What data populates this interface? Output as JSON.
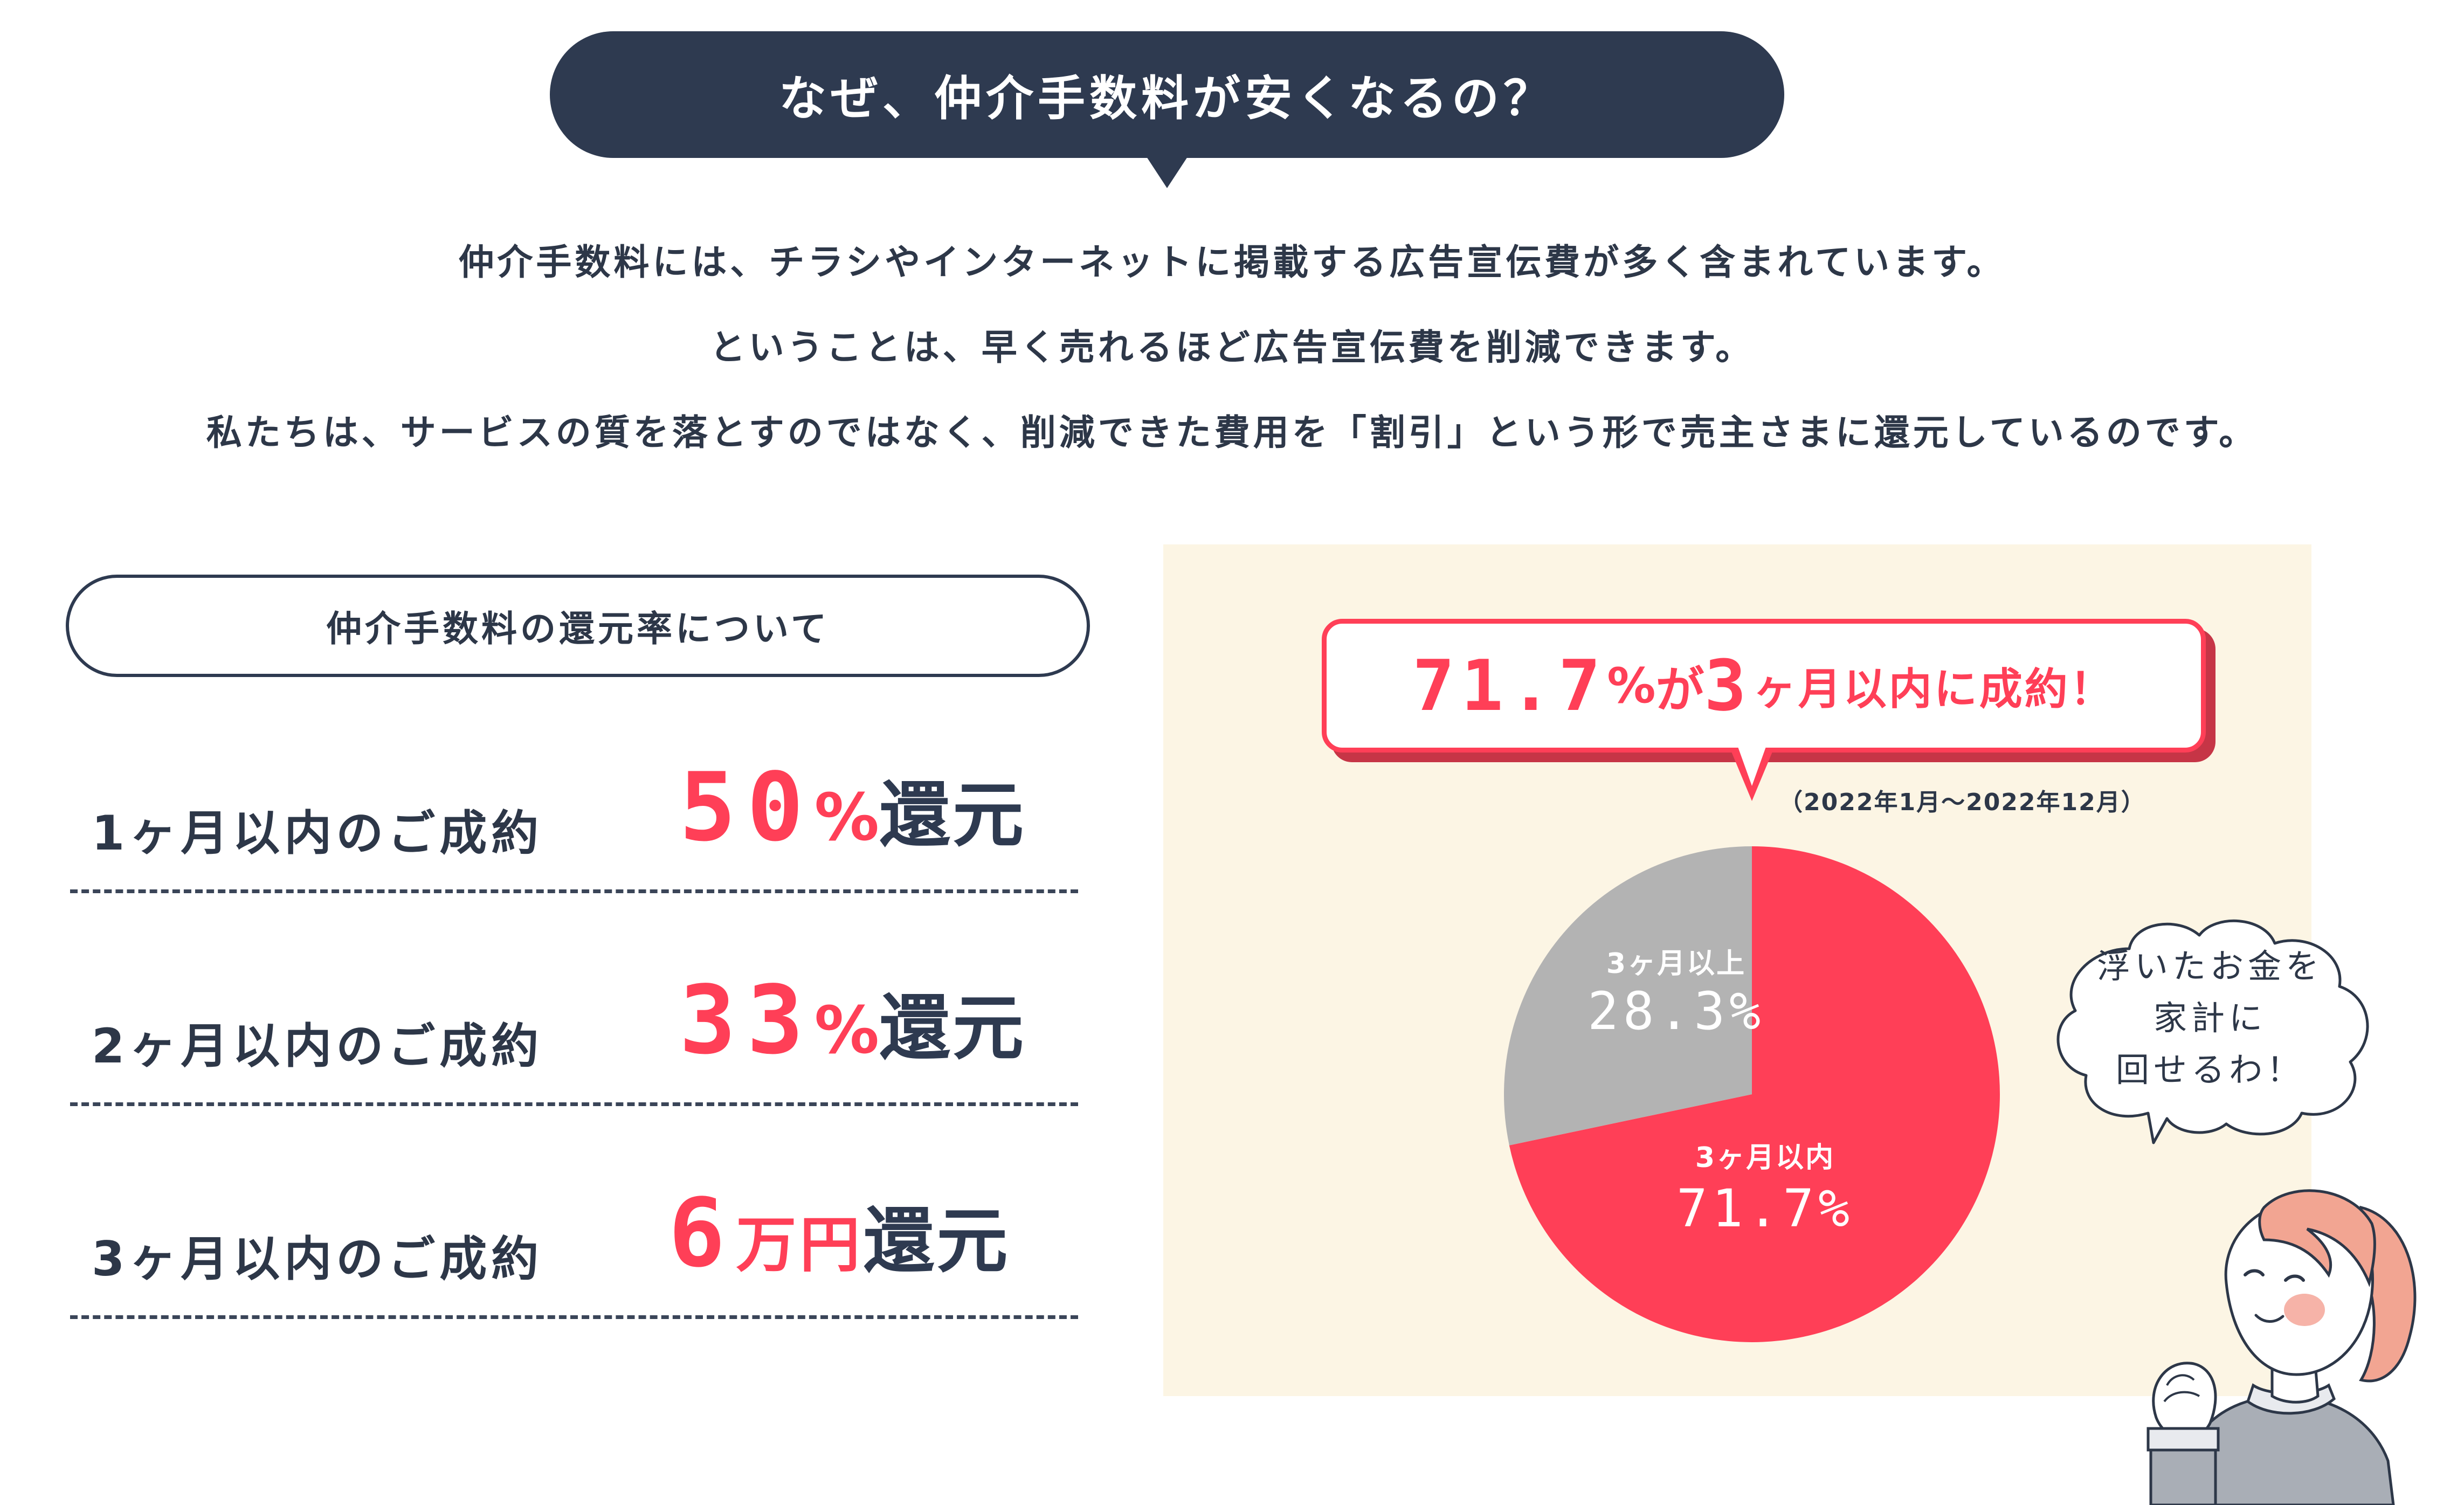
{
  "header": {
    "title": "なぜ、仲介手数料が安くなるの？"
  },
  "intro": {
    "lines": [
      "仲介手数料には、チラシやインターネットに掲載する広告宣伝費が多く含まれています。",
      "ということは、早く売れるほど広告宣伝費を削減できます。",
      "私たちは、サービスの質を落とすのではなく、削減できた費用を「割引」という形で売主さまに還元しているのです。"
    ]
  },
  "rebate": {
    "heading": "仲介手数料の還元率について",
    "rows": [
      {
        "period": "1ヶ月以内のご成約",
        "amount": "50",
        "unit": "%",
        "suffix": "還元"
      },
      {
        "period": "2ヶ月以内のご成約",
        "amount": "33",
        "unit": "%",
        "suffix": "還元"
      },
      {
        "period": "3ヶ月以内のご成約",
        "amount": "6",
        "unit": "万円",
        "suffix": "還元"
      }
    ]
  },
  "callout": {
    "big_value": "71.7",
    "pct": "%",
    "connector": "が",
    "months": "3",
    "rest": "ヶ月以内に成約！",
    "period_note": "（2022年1月〜2022年12月）"
  },
  "chart_data": {
    "type": "pie",
    "slices": [
      {
        "name": "3ヶ月以内",
        "label_value": "71.7%",
        "value": 71.7,
        "color": "#ff3f57"
      },
      {
        "name": "3ヶ月以上",
        "label_value": "28.3%",
        "value": 28.3,
        "color": "#b3b3b3"
      }
    ],
    "start": "12 o'clock, clockwise"
  },
  "thought": {
    "lines": [
      "浮いたお金を",
      "家計に",
      "回せるわ！"
    ]
  },
  "colors": {
    "navy": "#2e3a50",
    "accent_red": "#ff3f57",
    "panel_bg": "#fcf5e4",
    "grey_slice": "#b3b3b3"
  }
}
